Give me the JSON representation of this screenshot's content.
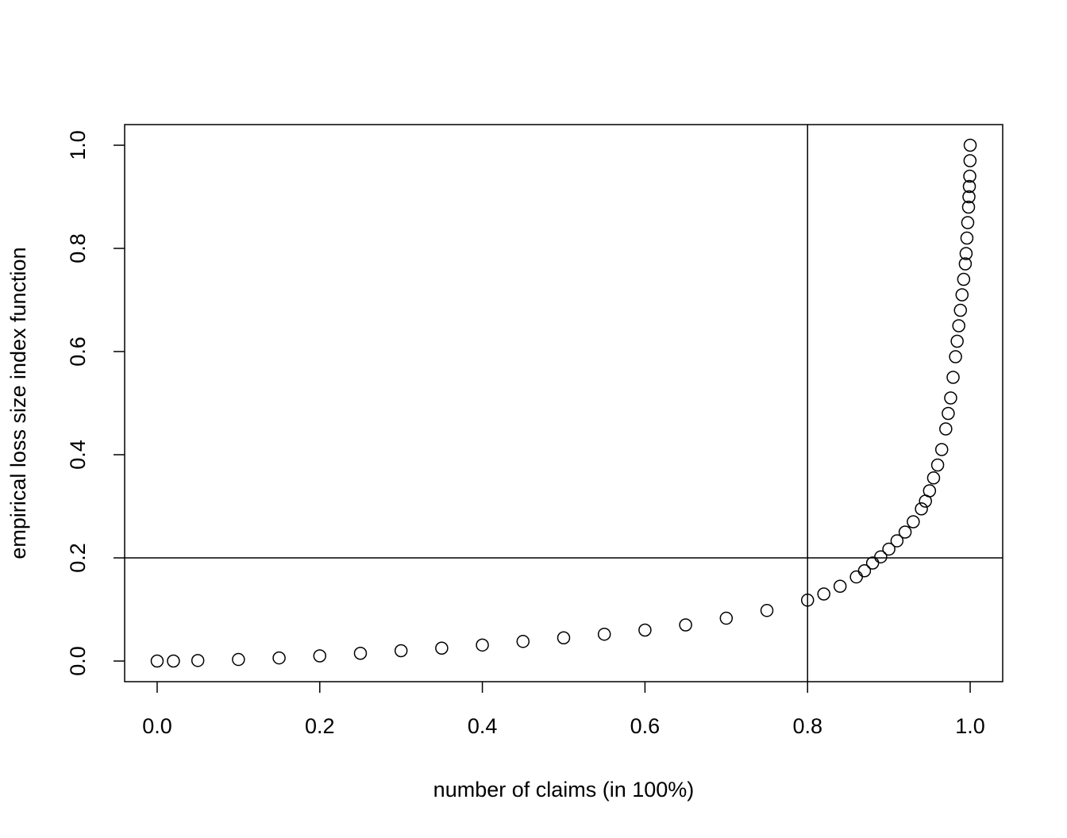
{
  "chart_data": {
    "type": "scatter",
    "x_label": "number of claims (in 100%)",
    "y_label": "empirical loss size index function",
    "color": "#000000",
    "x": [
      0,
      0.02,
      0.05,
      0.1,
      0.15,
      0.2,
      0.25,
      0.3,
      0.35,
      0.4,
      0.45,
      0.5,
      0.55,
      0.6,
      0.65,
      0.7,
      0.75,
      0.8,
      0.82,
      0.84,
      0.86,
      0.87,
      0.88,
      0.89,
      0.9,
      0.91,
      0.92,
      0.93,
      0.94,
      0.945,
      0.95,
      0.955,
      0.96,
      0.965,
      0.97,
      0.973,
      0.976,
      0.979,
      0.982,
      0.984,
      0.986,
      0.988,
      0.99,
      0.992,
      0.994,
      0.995,
      0.996,
      0.997,
      0.998,
      0.9985,
      0.999,
      0.9995,
      0.9998,
      1.0
    ],
    "values": [
      0,
      0,
      0.001,
      0.003,
      0.006,
      0.01,
      0.015,
      0.02,
      0.025,
      0.031,
      0.038,
      0.045,
      0.052,
      0.06,
      0.07,
      0.083,
      0.098,
      0.118,
      0.13,
      0.145,
      0.163,
      0.175,
      0.19,
      0.202,
      0.217,
      0.233,
      0.25,
      0.27,
      0.295,
      0.31,
      0.33,
      0.355,
      0.38,
      0.41,
      0.45,
      0.48,
      0.51,
      0.55,
      0.59,
      0.62,
      0.65,
      0.68,
      0.71,
      0.74,
      0.77,
      0.79,
      0.82,
      0.85,
      0.88,
      0.9,
      0.92,
      0.94,
      0.97,
      1.0
    ],
    "xlim": [
      -0.04,
      1.04
    ],
    "ylim": [
      -0.04,
      1.04
    ],
    "xticks": [
      {
        "value": 0,
        "label": "0.0"
      },
      {
        "value": 0.2,
        "label": "0.2"
      },
      {
        "value": 0.4,
        "label": "0.4"
      },
      {
        "value": 0.6,
        "label": "0.6"
      },
      {
        "value": 0.8,
        "label": "0.8"
      },
      {
        "value": 1,
        "label": "1.0"
      }
    ],
    "yticks": [
      {
        "value": 0,
        "label": "0.0"
      },
      {
        "value": 0.2,
        "label": "0.2"
      },
      {
        "value": 0.4,
        "label": "0.4"
      },
      {
        "value": 0.6,
        "label": "0.6"
      },
      {
        "value": 0.8,
        "label": "0.8"
      },
      {
        "value": 1,
        "label": "1.0"
      }
    ],
    "vline": 0.8,
    "hline": 0.2
  }
}
